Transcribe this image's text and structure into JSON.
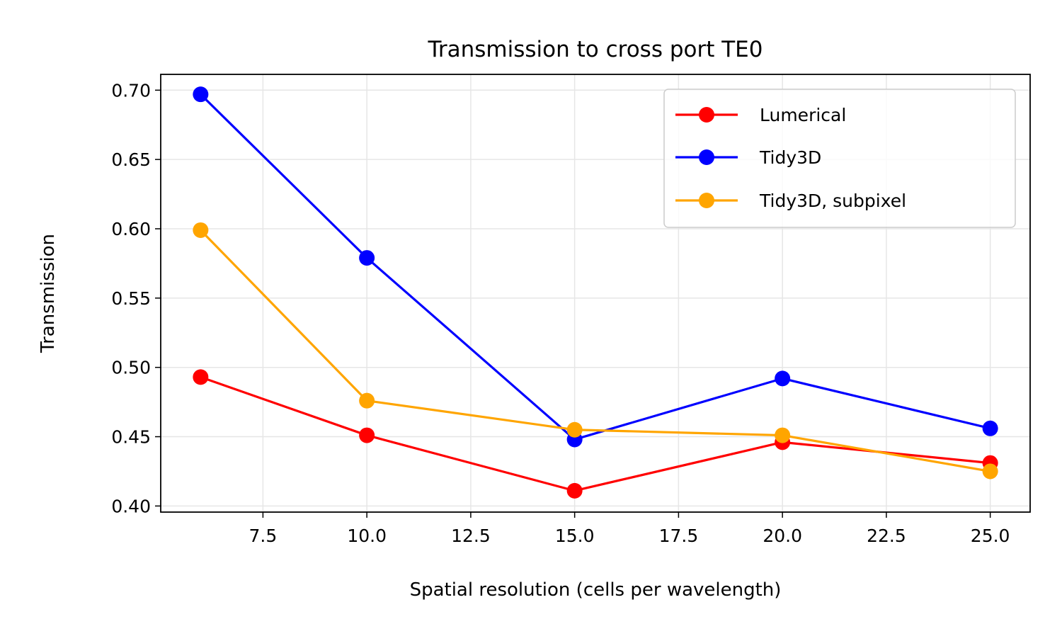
{
  "chart_data": {
    "type": "line",
    "title": "Transmission to cross port TE0",
    "xlabel": "Spatial resolution (cells per wavelength)",
    "ylabel": "Transmission",
    "xlim": [
      5.04,
      25.96
    ],
    "ylim": [
      0.3956,
      0.7114
    ],
    "x_ticks": [
      7.5,
      10.0,
      12.5,
      15.0,
      17.5,
      20.0,
      22.5,
      25.0
    ],
    "x_tick_labels": [
      "7.5",
      "10.0",
      "12.5",
      "15.0",
      "17.5",
      "20.0",
      "22.5",
      "25.0"
    ],
    "y_ticks": [
      0.4,
      0.45,
      0.5,
      0.55,
      0.6,
      0.65,
      0.7
    ],
    "y_tick_labels": [
      "0.40",
      "0.45",
      "0.50",
      "0.55",
      "0.60",
      "0.65",
      "0.70"
    ],
    "grid": true,
    "legend_position": "top-right",
    "x": [
      6,
      10,
      15,
      20,
      25
    ],
    "series": [
      {
        "name": "Lumerical",
        "color": "#ff0000",
        "values": [
          0.493,
          0.451,
          0.411,
          0.446,
          0.431
        ]
      },
      {
        "name": "Tidy3D",
        "color": "#0000ff",
        "values": [
          0.697,
          0.579,
          0.448,
          0.492,
          0.456
        ]
      },
      {
        "name": "Tidy3D, subpixel",
        "color": "#ffa500",
        "values": [
          0.599,
          0.476,
          0.455,
          0.451,
          0.425
        ]
      }
    ]
  }
}
